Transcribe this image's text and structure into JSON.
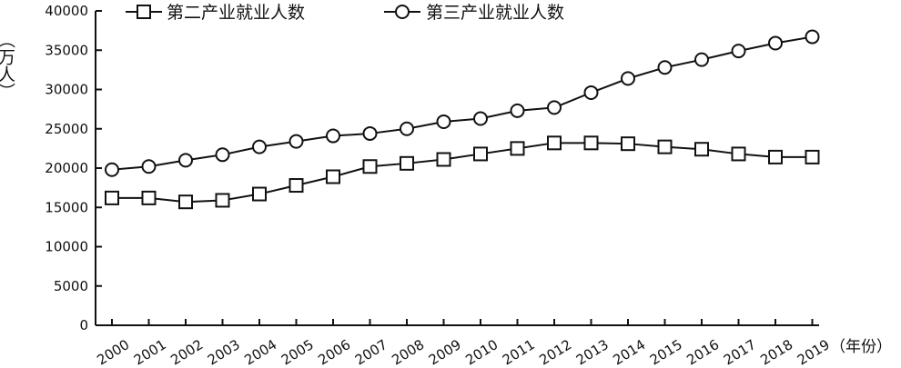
{
  "chart_data": {
    "type": "line",
    "x_unit_label": "（年份）",
    "y_unit_label": "（万人）",
    "categories": [
      "2000",
      "2001",
      "2002",
      "2003",
      "2004",
      "2005",
      "2006",
      "2007",
      "2008",
      "2009",
      "2010",
      "2011",
      "2012",
      "2013",
      "2014",
      "2015",
      "2016",
      "2017",
      "2018",
      "2019"
    ],
    "ylim": [
      0,
      40000
    ],
    "yticks": [
      0,
      5000,
      10000,
      15000,
      20000,
      25000,
      30000,
      35000,
      40000
    ],
    "legend_position": "top",
    "grid": false,
    "series": [
      {
        "name": "第二产业就业人数",
        "marker": "square",
        "values": [
          16200,
          16200,
          15700,
          15900,
          16700,
          17800,
          18900,
          20200,
          20600,
          21100,
          21800,
          22500,
          23200,
          23200,
          23100,
          22700,
          22400,
          21800,
          21400,
          21400
        ]
      },
      {
        "name": "第三产业就业人数",
        "marker": "circle",
        "values": [
          19800,
          20200,
          21000,
          21700,
          22700,
          23400,
          24100,
          24400,
          25000,
          25900,
          26300,
          27300,
          27700,
          29600,
          31400,
          32800,
          33800,
          34900,
          35900,
          36700
        ]
      }
    ]
  }
}
